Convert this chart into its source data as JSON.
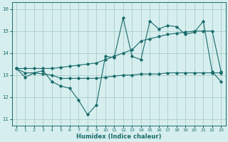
{
  "x": [
    0,
    1,
    2,
    3,
    4,
    5,
    6,
    7,
    8,
    9,
    10,
    11,
    12,
    13,
    14,
    15,
    16,
    17,
    18,
    19,
    20,
    21,
    22,
    23
  ],
  "line_zigzag": [
    13.3,
    12.9,
    13.1,
    13.2,
    12.7,
    12.5,
    12.4,
    11.85,
    11.2,
    11.65,
    13.85,
    13.8,
    15.6,
    13.85,
    13.7,
    15.45,
    15.1,
    15.25,
    15.2,
    14.85,
    14.95,
    15.45,
    13.15,
    12.7
  ],
  "line_diagonal_top": [
    13.3,
    13.3,
    13.3,
    13.3,
    13.3,
    13.35,
    13.4,
    13.45,
    13.5,
    13.55,
    13.7,
    13.85,
    14.0,
    14.15,
    14.55,
    14.65,
    14.75,
    14.85,
    14.9,
    14.95,
    15.0,
    15.0,
    15.0,
    13.15
  ],
  "line_flat": [
    13.3,
    13.1,
    13.1,
    13.05,
    13.0,
    12.85,
    12.85,
    12.85,
    12.85,
    12.85,
    12.9,
    12.95,
    13.0,
    13.0,
    13.05,
    13.05,
    13.05,
    13.1,
    13.1,
    13.1,
    13.1,
    13.1,
    13.1,
    13.1
  ],
  "ylim": [
    10.7,
    16.3
  ],
  "yticks": [
    11,
    12,
    13,
    14,
    15,
    16
  ],
  "xticks": [
    0,
    1,
    2,
    3,
    4,
    5,
    6,
    7,
    8,
    9,
    10,
    11,
    12,
    13,
    14,
    15,
    16,
    17,
    18,
    19,
    20,
    21,
    22,
    23
  ],
  "xlabel": "Humidex (Indice chaleur)",
  "line_color": "#1a6b6b",
  "bg_color": "#d6eeee",
  "grid_color": "#aacccc"
}
